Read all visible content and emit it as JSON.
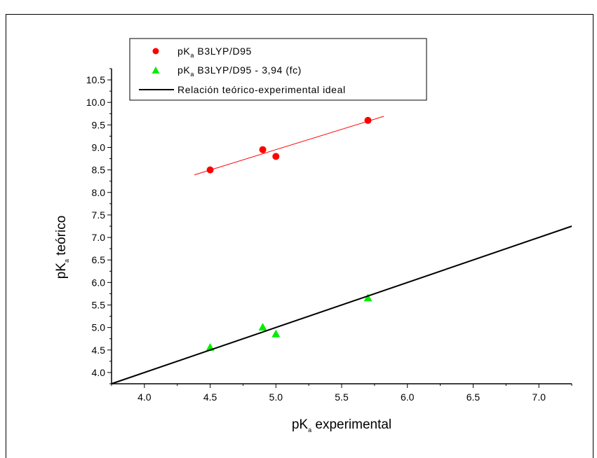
{
  "chart_data": {
    "type": "scatter",
    "xlabel": {
      "main": "pK",
      "sub": "a",
      "rest": " experimental"
    },
    "ylabel": {
      "main": "pK",
      "sub": "a",
      "rest": " teórico"
    },
    "xlim": [
      3.75,
      7.25
    ],
    "ylim": [
      3.75,
      10.75
    ],
    "xticks": [
      4.0,
      4.5,
      5.0,
      5.5,
      6.0,
      6.5,
      7.0
    ],
    "xtick_labels": [
      "4.0",
      "4.5",
      "5.0",
      "5.5",
      "6.0",
      "6.5",
      "7.0"
    ],
    "yticks": [
      4.0,
      4.5,
      5.0,
      5.5,
      6.0,
      6.5,
      7.0,
      7.5,
      8.0,
      8.5,
      9.0,
      9.5,
      10.0,
      10.5
    ],
    "ytick_labels": [
      "4.0",
      "4.5",
      "5.0",
      "5.5",
      "6.0",
      "6.5",
      "7.0",
      "7.5",
      "8.0",
      "8.5",
      "9.0",
      "9.5",
      "10.0",
      "10.5"
    ],
    "grid": false,
    "legend_position": "top-left",
    "series": [
      {
        "name": {
          "main": "pK",
          "sub": "a",
          "rest": " B3LYP/D95"
        },
        "marker": "circle",
        "color": "#ff0000",
        "x": [
          4.5,
          4.9,
          5.0,
          5.7
        ],
        "y": [
          8.5,
          8.95,
          8.8,
          9.6
        ],
        "fit_line": {
          "x": [
            4.38,
            5.82
          ],
          "y": [
            8.39,
            9.69
          ],
          "color": "#ff0000"
        }
      },
      {
        "name": {
          "main": "pK",
          "sub": "a",
          "rest": " B3LYP/D95 - 3,94 (fc)"
        },
        "marker": "triangle",
        "color": "#00ee00",
        "x": [
          4.5,
          4.9,
          5.0,
          5.7
        ],
        "y": [
          4.56,
          5.01,
          4.86,
          5.66
        ]
      },
      {
        "name": {
          "main": "Relación teórico-experimental ideal",
          "sub": "",
          "rest": ""
        },
        "marker": "line",
        "color": "#000000",
        "x": [
          3.75,
          7.25
        ],
        "y": [
          3.75,
          7.25
        ]
      }
    ]
  }
}
